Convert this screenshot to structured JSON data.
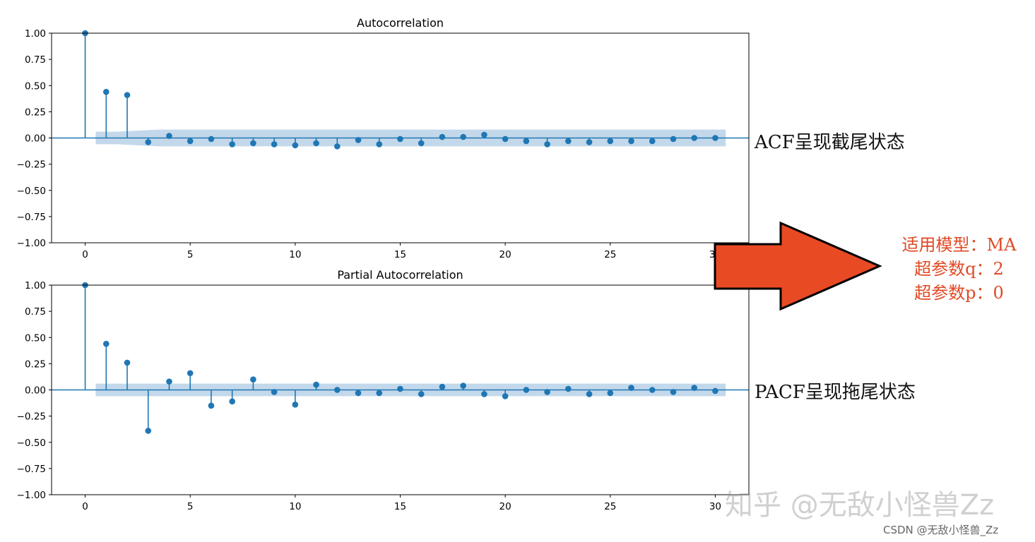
{
  "chart_data": [
    {
      "type": "stem",
      "title": "Autocorrelation",
      "xlim": [
        -1.6,
        31.6
      ],
      "ylim": [
        -1.0,
        1.0
      ],
      "xticks": [
        0,
        5,
        10,
        15,
        20,
        25,
        30
      ],
      "yticks": [
        1.0,
        0.75,
        0.5,
        0.25,
        0.0,
        -0.25,
        -0.5,
        -0.75,
        -1.0
      ],
      "ytick_labels": [
        "1.00",
        "0.75",
        "0.50",
        "0.25",
        "0.00",
        "−0.25",
        "−0.50",
        "−0.75",
        "−1.00"
      ],
      "lags": [
        0,
        1,
        2,
        3,
        4,
        5,
        6,
        7,
        8,
        9,
        10,
        11,
        12,
        13,
        14,
        15,
        16,
        17,
        18,
        19,
        20,
        21,
        22,
        23,
        24,
        25,
        26,
        27,
        28,
        29,
        30
      ],
      "values": [
        1.0,
        0.44,
        0.41,
        -0.04,
        0.02,
        -0.03,
        -0.01,
        -0.06,
        -0.05,
        -0.06,
        -0.07,
        -0.05,
        -0.08,
        -0.02,
        -0.06,
        -0.01,
        -0.05,
        0.01,
        0.01,
        0.03,
        -0.01,
        -0.03,
        -0.06,
        -0.03,
        -0.04,
        -0.03,
        -0.03,
        -0.03,
        -0.01,
        0.0,
        0.0
      ],
      "confidence_band": {
        "x": [
          0.5,
          1.5,
          2.5,
          3.5,
          30.5
        ],
        "upper": [
          0.06,
          0.06,
          0.07,
          0.08,
          0.08
        ],
        "lower": [
          -0.06,
          -0.06,
          -0.07,
          -0.08,
          -0.08
        ]
      },
      "color": "#1f77b4",
      "band_color": "#c0d6ea"
    },
    {
      "type": "stem",
      "title": "Partial Autocorrelation",
      "xlim": [
        -1.6,
        31.6
      ],
      "ylim": [
        -1.0,
        1.0
      ],
      "xticks": [
        0,
        5,
        10,
        15,
        20,
        25,
        30
      ],
      "yticks": [
        1.0,
        0.75,
        0.5,
        0.25,
        0.0,
        -0.25,
        -0.5,
        -0.75,
        -1.0
      ],
      "ytick_labels": [
        "1.00",
        "0.75",
        "0.50",
        "0.25",
        "0.00",
        "−0.25",
        "−0.50",
        "−0.75",
        "−1.00"
      ],
      "lags": [
        0,
        1,
        2,
        3,
        4,
        5,
        6,
        7,
        8,
        9,
        10,
        11,
        12,
        13,
        14,
        15,
        16,
        17,
        18,
        19,
        20,
        21,
        22,
        23,
        24,
        25,
        26,
        27,
        28,
        29,
        30
      ],
      "values": [
        1.0,
        0.44,
        0.26,
        -0.39,
        0.08,
        0.16,
        -0.15,
        -0.11,
        0.1,
        -0.02,
        -0.14,
        0.05,
        0.0,
        -0.03,
        -0.03,
        0.01,
        -0.04,
        0.03,
        0.04,
        -0.04,
        -0.06,
        0.0,
        -0.02,
        0.01,
        -0.04,
        -0.03,
        0.02,
        0.0,
        -0.02,
        0.02,
        -0.01
      ],
      "confidence_band": {
        "x": [
          0.5,
          30.5
        ],
        "upper": [
          0.06,
          0.06
        ],
        "lower": [
          -0.06,
          -0.06
        ]
      },
      "color": "#1f77b4",
      "band_color": "#c0d6ea"
    }
  ],
  "annotations": {
    "acf_note": "ACF呈现截尾状态",
    "pacf_note": "PACF呈现拖尾状态",
    "conclusion_lines": [
      "适用模型：MA",
      "超参数q：2",
      "超参数p：0"
    ],
    "arrow_color": "#e84a24"
  },
  "watermark": "知乎 @无敌小怪兽Zz",
  "credit": "CSDN @无敌小怪兽_Zz"
}
